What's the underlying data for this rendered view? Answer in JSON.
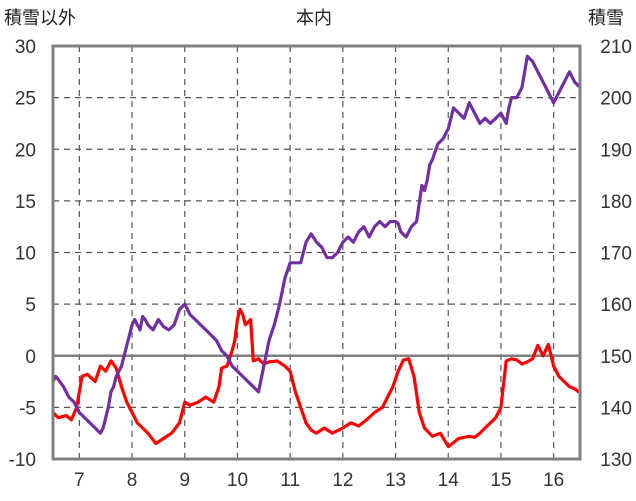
{
  "chart_data": {
    "type": "line",
    "title": "本内",
    "left_axis_label": "積雪以外",
    "right_axis_label": "積雪",
    "x_ticks": [
      "7",
      "8",
      "9",
      "10",
      "11",
      "12",
      "13",
      "14",
      "15",
      "16"
    ],
    "xlim": [
      6.5,
      16.5
    ],
    "left_ylim": [
      -10,
      30
    ],
    "left_yticks": [
      -10,
      -5,
      0,
      5,
      10,
      15,
      20,
      25,
      30
    ],
    "left_ytick_labels": [
      "-10",
      "-5",
      "0",
      "5",
      "10",
      "15",
      "20",
      "25",
      "30"
    ],
    "right_ylim": [
      130,
      210
    ],
    "right_ytick_labels": [
      "130",
      "140",
      "150",
      "160",
      "170",
      "180",
      "190",
      "200",
      "210"
    ],
    "grid": true,
    "series": [
      {
        "axis": "left",
        "color": "#ff0000",
        "x": [
          6.5,
          6.6,
          6.75,
          6.85,
          6.95,
          7.05,
          7.15,
          7.3,
          7.4,
          7.5,
          7.6,
          7.7,
          7.8,
          7.9,
          8.0,
          8.1,
          8.2,
          8.3,
          8.45,
          8.6,
          8.75,
          8.9,
          9.0,
          9.1,
          9.25,
          9.4,
          9.55,
          9.65,
          9.7,
          9.8,
          9.9,
          9.95,
          10.0,
          10.05,
          10.1,
          10.15,
          10.25,
          10.3,
          10.4,
          10.5,
          10.6,
          10.75,
          10.9,
          11.0,
          11.1,
          11.2,
          11.3,
          11.4,
          11.5,
          11.65,
          11.8,
          12.0,
          12.15,
          12.3,
          12.45,
          12.6,
          12.75,
          12.85,
          12.95,
          13.05,
          13.15,
          13.25,
          13.35,
          13.45,
          13.55,
          13.7,
          13.85,
          14.0,
          14.2,
          14.4,
          14.5,
          14.6,
          14.7,
          14.8,
          14.9,
          14.95,
          15.0,
          15.1,
          15.2,
          15.3,
          15.4,
          15.5,
          15.6,
          15.7,
          15.8,
          15.9,
          16.0,
          16.1,
          16.2,
          16.3,
          16.4,
          16.5
        ],
        "y": [
          -5.5,
          -6.0,
          -5.8,
          -6.2,
          -5.0,
          -2.0,
          -1.8,
          -2.5,
          -1.0,
          -1.5,
          -0.5,
          -1.2,
          -3.0,
          -4.5,
          -5.5,
          -6.5,
          -7.0,
          -7.5,
          -8.5,
          -8.0,
          -7.5,
          -6.5,
          -4.5,
          -4.8,
          -4.5,
          -4.0,
          -4.5,
          -3.0,
          -1.2,
          -1.0,
          0.5,
          1.5,
          3.5,
          4.5,
          4.0,
          3.0,
          3.5,
          -0.5,
          -0.3,
          -0.8,
          -0.6,
          -0.5,
          -1.0,
          -1.5,
          -3.5,
          -5.0,
          -6.5,
          -7.2,
          -7.5,
          -7.0,
          -7.5,
          -7.0,
          -6.5,
          -6.8,
          -6.2,
          -5.5,
          -5.0,
          -4.0,
          -3.0,
          -1.5,
          -0.4,
          -0.3,
          -2.0,
          -5.5,
          -7.0,
          -7.8,
          -7.5,
          -8.8,
          -8.0,
          -7.8,
          -7.9,
          -7.5,
          -7.0,
          -6.5,
          -6.0,
          -5.5,
          -5.0,
          -0.5,
          -0.3,
          -0.4,
          -0.8,
          -0.6,
          -0.3,
          1.0,
          0.0,
          1.1,
          -1.0,
          -2.0,
          -2.5,
          -3.0,
          -3.2,
          -3.6
        ]
      },
      {
        "axis": "left",
        "color": "#7030a0",
        "x": [
          6.5,
          6.55,
          6.6,
          6.7,
          6.8,
          6.9,
          7.0,
          7.1,
          7.2,
          7.3,
          7.4,
          7.45,
          7.5,
          7.55,
          7.6,
          7.65,
          7.7,
          7.8,
          7.9,
          8.0,
          8.05,
          8.1,
          8.15,
          8.2,
          8.25,
          8.3,
          8.4,
          8.5,
          8.6,
          8.7,
          8.8,
          8.9,
          9.0,
          9.1,
          9.2,
          9.3,
          9.4,
          9.5,
          9.6,
          9.7,
          9.8,
          9.9,
          10.0,
          10.1,
          10.2,
          10.3,
          10.4,
          10.5,
          10.6,
          10.7,
          10.8,
          10.9,
          11.0,
          11.1,
          11.2,
          11.3,
          11.4,
          11.5,
          11.6,
          11.7,
          11.8,
          11.9,
          12.0,
          12.1,
          12.2,
          12.3,
          12.4,
          12.5,
          12.6,
          12.7,
          12.8,
          12.9,
          13.0,
          13.05,
          13.1,
          13.2,
          13.3,
          13.4,
          13.5,
          13.55,
          13.6,
          13.65,
          13.7,
          13.8,
          13.9,
          14.0,
          14.1,
          14.2,
          14.3,
          14.4,
          14.5,
          14.6,
          14.7,
          14.8,
          14.9,
          15.0,
          15.1,
          15.15,
          15.2,
          15.25,
          15.3,
          15.4,
          15.5,
          15.6,
          15.7,
          15.8,
          15.9,
          16.0,
          16.1,
          16.2,
          16.3,
          16.4,
          16.5
        ],
        "y": [
          -2.5,
          -2.0,
          -2.3,
          -3.0,
          -4.0,
          -4.5,
          -5.5,
          -6.0,
          -6.5,
          -7.0,
          -7.5,
          -7.0,
          -6.0,
          -5.0,
          -3.5,
          -3.0,
          -2.0,
          -1.0,
          1.0,
          3.0,
          3.5,
          3.0,
          2.5,
          3.8,
          3.5,
          3.0,
          2.5,
          3.5,
          2.8,
          2.5,
          3.0,
          4.5,
          5.0,
          4.0,
          3.5,
          3.0,
          2.5,
          2.0,
          1.5,
          0.5,
          0.0,
          -1.0,
          -1.5,
          -2.0,
          -2.5,
          -3.0,
          -3.5,
          -1.0,
          1.5,
          3.0,
          5.0,
          7.5,
          9.0,
          9.0,
          9.0,
          11.0,
          11.8,
          11.0,
          10.5,
          9.5,
          9.5,
          10.0,
          11.0,
          11.5,
          11.0,
          12.0,
          12.5,
          11.5,
          12.5,
          13.0,
          12.5,
          13.0,
          13.0,
          12.8,
          12.0,
          11.5,
          12.5,
          13.0,
          16.5,
          16.0,
          17.0,
          18.5,
          19.0,
          20.5,
          21.0,
          22.0,
          24.0,
          23.5,
          23.0,
          24.5,
          23.5,
          22.5,
          23.0,
          22.5,
          23.0,
          23.5,
          22.5,
          24.0,
          25.0,
          25.0,
          25.0,
          26.0,
          29.0,
          28.5,
          27.5,
          26.5,
          25.5,
          24.5,
          25.5,
          26.5,
          27.5,
          26.5,
          26.0
        ]
      }
    ]
  }
}
